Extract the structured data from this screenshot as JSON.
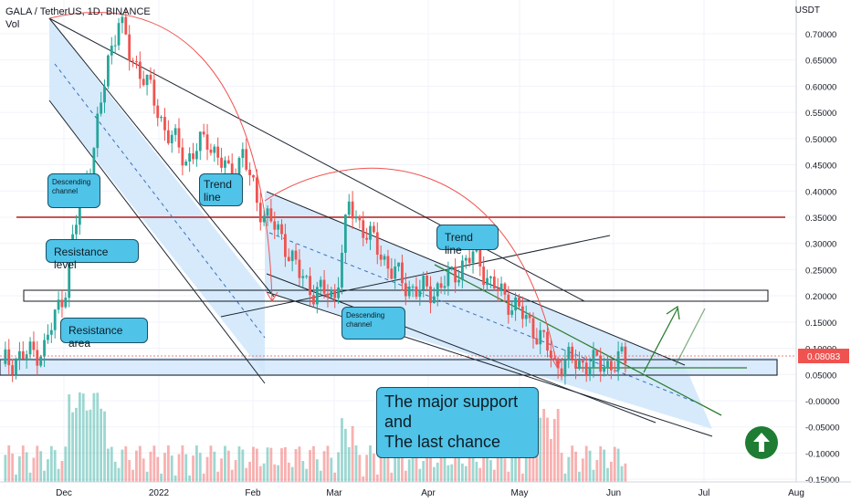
{
  "legend": {
    "symbol": "GALA / TetherUS, 1D, BINANCE",
    "vol": "Vol"
  },
  "axis": {
    "currency": "USDT",
    "last_price": "0.08083"
  },
  "annotations": {
    "channel1": "Descending\nchannel",
    "trend1": "Trend\nline",
    "resistance_level": "Resistance level",
    "resistance_area": "Resistance area",
    "trend2": "Trend line",
    "channel2": "Descending\nchannel",
    "support": "The major support\nand\nThe last chance"
  },
  "colors": {
    "up": "#26a69a",
    "down": "#ef5350",
    "channel": "#bbdefb",
    "resistance": "#b71c1c",
    "callout": "#4fc3e8",
    "accent": "#1e7d32"
  },
  "icons": {
    "badge": "arrow-up-circle-icon"
  },
  "chart_data": {
    "type": "candlestick",
    "x_ticks": [
      "Dec",
      "2022",
      "Feb",
      "Mar",
      "Apr",
      "May",
      "Jun",
      "Jul",
      "Aug"
    ],
    "y_ticks": [
      "0.70000",
      "0.65000",
      "0.60000",
      "0.55000",
      "0.50000",
      "0.45000",
      "0.40000",
      "0.35000",
      "0.30000",
      "0.25000",
      "0.20000",
      "0.15000",
      "0.10000",
      "0.05000",
      "-0.00000",
      "-0.05000",
      "-0.10000",
      "-0.15000"
    ],
    "ylim": [
      -0.155,
      0.74
    ],
    "resistance_level": 0.35,
    "resistance_area": [
      0.18,
      0.205
    ],
    "support_area": [
      0.045,
      0.075
    ],
    "close_path": [
      [
        0,
        0.07
      ],
      [
        12,
        0.1
      ],
      [
        18,
        0.22
      ],
      [
        22,
        0.38
      ],
      [
        26,
        0.48
      ],
      [
        30,
        0.65
      ],
      [
        33,
        0.73
      ],
      [
        36,
        0.66
      ],
      [
        40,
        0.62
      ],
      [
        46,
        0.52
      ],
      [
        52,
        0.46
      ],
      [
        58,
        0.5
      ],
      [
        64,
        0.43
      ],
      [
        68,
        0.47
      ],
      [
        72,
        0.38
      ],
      [
        76,
        0.34
      ],
      [
        80,
        0.3
      ],
      [
        84,
        0.24
      ],
      [
        88,
        0.21
      ],
      [
        94,
        0.2
      ],
      [
        98,
        0.37
      ],
      [
        102,
        0.33
      ],
      [
        106,
        0.29
      ],
      [
        110,
        0.25
      ],
      [
        114,
        0.22
      ],
      [
        118,
        0.21
      ],
      [
        122,
        0.21
      ],
      [
        126,
        0.23
      ],
      [
        130,
        0.26
      ],
      [
        134,
        0.28
      ],
      [
        138,
        0.22
      ],
      [
        142,
        0.2
      ],
      [
        146,
        0.17
      ],
      [
        150,
        0.14
      ],
      [
        154,
        0.1
      ],
      [
        156,
        0.07
      ],
      [
        160,
        0.075
      ],
      [
        166,
        0.07
      ],
      [
        172,
        0.07
      ],
      [
        176,
        0.08
      ]
    ]
  }
}
